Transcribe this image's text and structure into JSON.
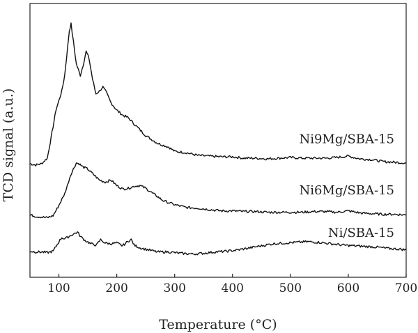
{
  "chart_data": {
    "type": "line",
    "xlabel": "Temperature (°C)",
    "ylabel": "TCD signal (a.u.)",
    "xlim": [
      50,
      700
    ],
    "ylim": [
      0,
      4.0
    ],
    "x_ticks": [
      100,
      200,
      300,
      400,
      500,
      600,
      700
    ],
    "y_ticks_visible": false,
    "grid": false,
    "legend": "none",
    "series": [
      {
        "name": "Ni9Mg/SBA-15",
        "points": [
          [
            50,
            1.66
          ],
          [
            60,
            1.64
          ],
          [
            70,
            1.66
          ],
          [
            80,
            1.74
          ],
          [
            90,
            2.2
          ],
          [
            95,
            2.45
          ],
          [
            100,
            2.58
          ],
          [
            105,
            2.72
          ],
          [
            110,
            2.95
          ],
          [
            115,
            3.35
          ],
          [
            118,
            3.6
          ],
          [
            121,
            3.7
          ],
          [
            125,
            3.45
          ],
          [
            130,
            3.12
          ],
          [
            137,
            2.95
          ],
          [
            142,
            3.1
          ],
          [
            147,
            3.3
          ],
          [
            152,
            3.2
          ],
          [
            158,
            2.9
          ],
          [
            164,
            2.68
          ],
          [
            170,
            2.72
          ],
          [
            176,
            2.78
          ],
          [
            182,
            2.7
          ],
          [
            190,
            2.55
          ],
          [
            200,
            2.44
          ],
          [
            210,
            2.37
          ],
          [
            220,
            2.33
          ],
          [
            230,
            2.24
          ],
          [
            250,
            2.07
          ],
          [
            270,
            1.96
          ],
          [
            290,
            1.9
          ],
          [
            300,
            1.84
          ],
          [
            320,
            1.82
          ],
          [
            340,
            1.78
          ],
          [
            360,
            1.77
          ],
          [
            380,
            1.76
          ],
          [
            400,
            1.76
          ],
          [
            420,
            1.74
          ],
          [
            440,
            1.74
          ],
          [
            460,
            1.73
          ],
          [
            480,
            1.74
          ],
          [
            500,
            1.75
          ],
          [
            520,
            1.74
          ],
          [
            540,
            1.74
          ],
          [
            560,
            1.74
          ],
          [
            580,
            1.75
          ],
          [
            600,
            1.77
          ],
          [
            620,
            1.73
          ],
          [
            640,
            1.72
          ],
          [
            660,
            1.69
          ],
          [
            680,
            1.68
          ],
          [
            700,
            1.67
          ]
        ]
      },
      {
        "name": "Ni6Mg/SBA-15",
        "points": [
          [
            50,
            0.91
          ],
          [
            60,
            0.89
          ],
          [
            70,
            0.88
          ],
          [
            80,
            0.87
          ],
          [
            90,
            0.9
          ],
          [
            100,
            1.05
          ],
          [
            110,
            1.22
          ],
          [
            115,
            1.35
          ],
          [
            120,
            1.49
          ],
          [
            125,
            1.58
          ],
          [
            130,
            1.67
          ],
          [
            135,
            1.66
          ],
          [
            140,
            1.62
          ],
          [
            150,
            1.58
          ],
          [
            160,
            1.5
          ],
          [
            170,
            1.42
          ],
          [
            180,
            1.39
          ],
          [
            190,
            1.42
          ],
          [
            200,
            1.34
          ],
          [
            210,
            1.29
          ],
          [
            220,
            1.3
          ],
          [
            230,
            1.33
          ],
          [
            240,
            1.34
          ],
          [
            250,
            1.3
          ],
          [
            260,
            1.24
          ],
          [
            270,
            1.18
          ],
          [
            280,
            1.12
          ],
          [
            300,
            1.06
          ],
          [
            320,
            1.02
          ],
          [
            340,
            1.01
          ],
          [
            360,
            0.99
          ],
          [
            380,
            0.97
          ],
          [
            400,
            0.97
          ],
          [
            420,
            0.96
          ],
          [
            440,
            0.96
          ],
          [
            460,
            0.95
          ],
          [
            480,
            0.95
          ],
          [
            500,
            0.95
          ],
          [
            520,
            0.95
          ],
          [
            540,
            0.96
          ],
          [
            560,
            0.96
          ],
          [
            580,
            0.95
          ],
          [
            600,
            0.97
          ],
          [
            620,
            0.94
          ],
          [
            640,
            0.93
          ],
          [
            660,
            0.92
          ],
          [
            680,
            0.92
          ],
          [
            700,
            0.91
          ]
        ]
      },
      {
        "name": "Ni/SBA-15",
        "points": [
          [
            50,
            0.38
          ],
          [
            60,
            0.37
          ],
          [
            70,
            0.37
          ],
          [
            80,
            0.36
          ],
          [
            90,
            0.38
          ],
          [
            100,
            0.52
          ],
          [
            105,
            0.58
          ],
          [
            110,
            0.56
          ],
          [
            118,
            0.6
          ],
          [
            125,
            0.63
          ],
          [
            132,
            0.66
          ],
          [
            138,
            0.59
          ],
          [
            145,
            0.54
          ],
          [
            155,
            0.49
          ],
          [
            165,
            0.47
          ],
          [
            172,
            0.55
          ],
          [
            180,
            0.5
          ],
          [
            190,
            0.49
          ],
          [
            200,
            0.5
          ],
          [
            210,
            0.46
          ],
          [
            220,
            0.53
          ],
          [
            225,
            0.55
          ],
          [
            230,
            0.47
          ],
          [
            240,
            0.43
          ],
          [
            255,
            0.4
          ],
          [
            270,
            0.37
          ],
          [
            290,
            0.37
          ],
          [
            310,
            0.35
          ],
          [
            330,
            0.34
          ],
          [
            350,
            0.35
          ],
          [
            370,
            0.37
          ],
          [
            390,
            0.38
          ],
          [
            410,
            0.4
          ],
          [
            430,
            0.43
          ],
          [
            450,
            0.46
          ],
          [
            470,
            0.49
          ],
          [
            490,
            0.5
          ],
          [
            510,
            0.51
          ],
          [
            530,
            0.52
          ],
          [
            550,
            0.51
          ],
          [
            570,
            0.49
          ],
          [
            590,
            0.47
          ],
          [
            610,
            0.46
          ],
          [
            630,
            0.45
          ],
          [
            650,
            0.44
          ],
          [
            670,
            0.42
          ],
          [
            690,
            0.41
          ],
          [
            700,
            0.4
          ]
        ]
      }
    ]
  }
}
